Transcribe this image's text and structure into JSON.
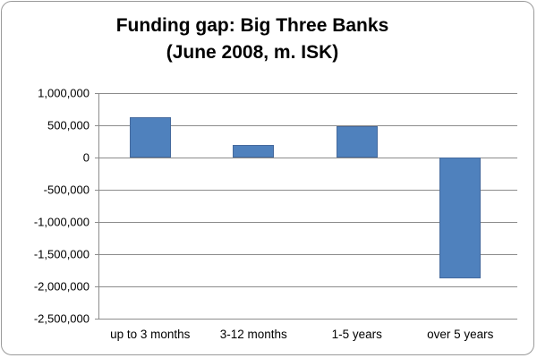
{
  "chart_data": {
    "type": "bar",
    "title": "Funding gap: Big Three Banks (June 2008, m. ISK)",
    "title_line1": "Funding gap: Big Three Banks",
    "title_line2": "(June 2008, m. ISK)",
    "categories": [
      "up to 3 months",
      "3-12 months",
      "1-5 years",
      "over 5 years"
    ],
    "values": [
      625000,
      200000,
      480000,
      -1875000
    ],
    "ylim": [
      -2500000,
      1000000
    ],
    "yticks": [
      1000000,
      500000,
      0,
      -500000,
      -1000000,
      -1500000,
      -2000000,
      -2500000
    ],
    "xlabel": "",
    "ylabel": "",
    "grid": "horizontal",
    "legend": "none",
    "bar_color": "#4F81BD",
    "bar_border_color": "#44699D",
    "gridline_color": "#8c8c8c"
  }
}
